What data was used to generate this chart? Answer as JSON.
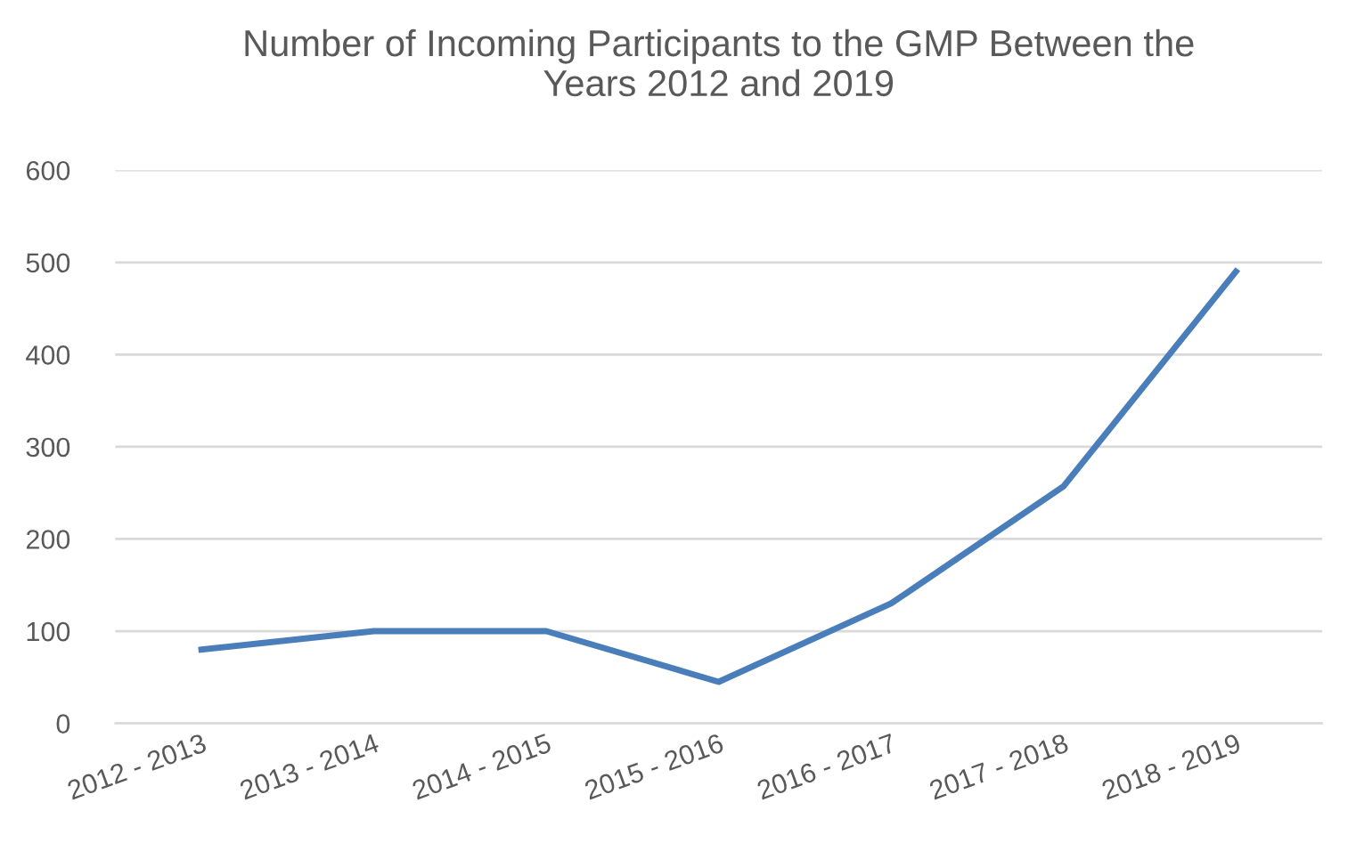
{
  "chart_data": {
    "type": "line",
    "title": "Number of Incoming Participants to the GMP Between the\nYears 2012 and 2019",
    "categories": [
      "2012 - 2013",
      "2013 - 2014",
      "2014 - 2015",
      "2015 - 2016",
      "2016 - 2017",
      "2017 - 2018",
      "2018 - 2019"
    ],
    "series": [
      {
        "color": "#4a7ebb",
        "values": [
          80,
          100,
          100,
          45,
          130,
          257,
          490
        ]
      }
    ],
    "ylim": [
      0,
      600
    ],
    "yticks": [
      0,
      100,
      200,
      300,
      400,
      500,
      600
    ],
    "grid": "y",
    "marker": "none",
    "line_style": "solid"
  }
}
